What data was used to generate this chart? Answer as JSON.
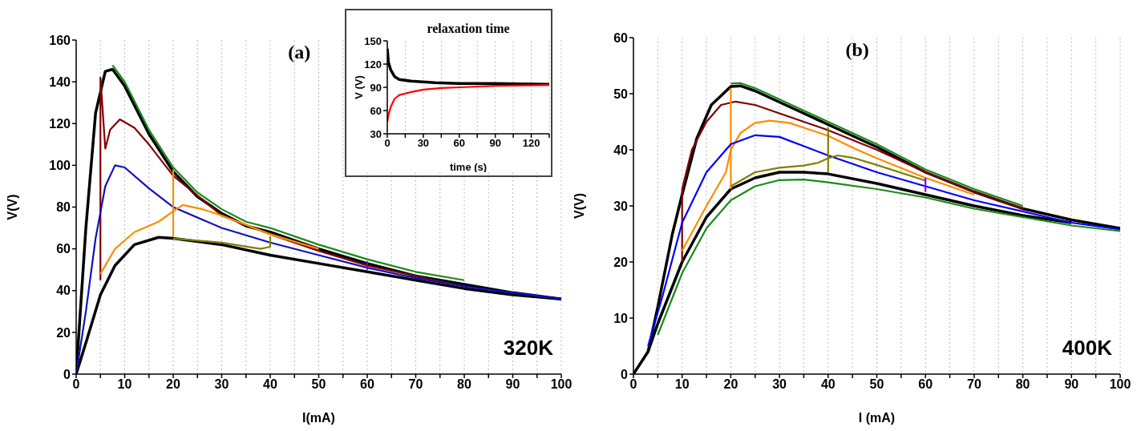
{
  "chart_data": [
    {
      "type": "line",
      "xlabel": "I(mA)",
      "ylabel": "V(V)",
      "annotations": [
        "(a)",
        "320K"
      ],
      "xlim": [
        0,
        100
      ],
      "ylim": [
        0,
        160
      ],
      "xticks": [
        0,
        {
          "value": 5,
          "label": null
        },
        10,
        {
          "value": 15,
          "label": null
        },
        20,
        {
          "value": 25,
          "label": null
        },
        30,
        {
          "value": 35,
          "label": null
        },
        40,
        {
          "value": 45,
          "label": null
        },
        50,
        {
          "value": 55,
          "label": null
        },
        60,
        {
          "value": 65,
          "label": null
        },
        70,
        {
          "value": 75,
          "label": null
        },
        80,
        {
          "value": 85,
          "label": null
        },
        90,
        {
          "value": 95,
          "label": null
        },
        100
      ],
      "yticks": [
        0,
        20,
        40,
        60,
        80,
        100,
        120,
        140,
        160
      ],
      "grid": "x",
      "series": [
        {
          "color": "#000000",
          "x": [
            0,
            2,
            4,
            6,
            7.5,
            10,
            15,
            20,
            25,
            30,
            35,
            40,
            50,
            60,
            70,
            80,
            90,
            100
          ],
          "values": [
            0,
            70,
            125,
            145,
            146,
            138,
            115,
            97,
            85,
            77,
            71,
            68,
            60,
            53,
            47,
            43,
            39,
            36
          ]
        },
        {
          "color": "#000000",
          "x": [
            0,
            2,
            5,
            8,
            12,
            17,
            20,
            30,
            40,
            50,
            60,
            70,
            80,
            90,
            100
          ],
          "values": [
            0,
            15,
            38,
            52,
            62,
            65.5,
            65,
            62,
            57,
            53,
            49,
            45,
            41,
            38,
            36
          ]
        },
        {
          "color": "#1a8a1a",
          "x": [
            7.5,
            10,
            15,
            20,
            25,
            30,
            35,
            40,
            50,
            60,
            70,
            80
          ],
          "values": [
            148,
            140,
            117,
            99,
            87,
            79,
            73,
            70,
            62,
            55,
            49,
            45
          ]
        },
        {
          "color": "#800000",
          "x": [
            5,
            5,
            6,
            7,
            9,
            12,
            15,
            20,
            30,
            40,
            50,
            60,
            70,
            80
          ],
          "values": [
            45,
            142,
            108,
            117,
            122,
            118,
            110,
            95,
            76,
            67,
            59,
            52,
            47,
            42
          ]
        },
        {
          "color": "#1010c0",
          "x": [
            0,
            2,
            4,
            6,
            8,
            10,
            15,
            20,
            30,
            40,
            50,
            60,
            70,
            80,
            90,
            100
          ],
          "values": [
            0,
            30,
            65,
            90,
            100,
            99,
            89,
            80,
            70,
            63,
            57,
            51,
            46,
            42,
            39,
            36
          ]
        },
        {
          "color": "#ff8c00",
          "x": [
            5,
            8,
            12,
            17,
            20,
            22,
            26,
            30,
            40,
            50
          ],
          "values": [
            48,
            60,
            68,
            73,
            78,
            81,
            79,
            76,
            67,
            60
          ]
        },
        {
          "color": "#ff8c00",
          "x": [
            20,
            20
          ],
          "values": [
            66,
            98
          ]
        },
        {
          "color": "#808000",
          "x": [
            20,
            30,
            38,
            40,
            40
          ],
          "values": [
            65,
            63,
            60,
            61,
            66
          ]
        },
        {
          "color": "#8000a0",
          "x": [
            60,
            60
          ],
          "values": [
            50,
            54
          ]
        }
      ]
    },
    {
      "type": "line",
      "title": "relaxation time",
      "xlabel": "time (s)",
      "ylabel": "V (V)",
      "xlim": [
        0,
        135
      ],
      "ylim": [
        30,
        150
      ],
      "xticks": [
        0,
        {
          "value": 15,
          "label": null
        },
        30,
        {
          "value": 45,
          "label": null
        },
        60,
        {
          "value": 75,
          "label": null
        },
        90,
        {
          "value": 105,
          "label": null
        },
        120,
        {
          "value": 135,
          "label": null
        }
      ],
      "yticks": [
        30,
        60,
        90,
        120,
        150
      ],
      "grid": "x",
      "series": [
        {
          "color": "#000000",
          "x": [
            0,
            1,
            3,
            6,
            10,
            20,
            40,
            60,
            90,
            135
          ],
          "values": [
            140,
            122,
            112,
            104,
            100,
            98,
            96,
            95,
            95,
            94
          ]
        },
        {
          "color": "#ff0000",
          "x": [
            0,
            1,
            3,
            6,
            10,
            20,
            30,
            45,
            60,
            90,
            135
          ],
          "values": [
            45,
            55,
            65,
            75,
            80,
            84,
            87,
            89,
            90,
            92,
            93
          ]
        }
      ]
    },
    {
      "type": "line",
      "xlabel": "I (mA)",
      "ylabel": "V(V)",
      "annotations": [
        "(b)",
        "400K"
      ],
      "xlim": [
        0,
        100
      ],
      "ylim": [
        0,
        60
      ],
      "xticks": [
        0,
        {
          "value": 5,
          "label": null
        },
        10,
        {
          "value": 15,
          "label": null
        },
        20,
        {
          "value": 25,
          "label": null
        },
        30,
        {
          "value": 35,
          "label": null
        },
        40,
        {
          "value": 45,
          "label": null
        },
        50,
        {
          "value": 55,
          "label": null
        },
        60,
        {
          "value": 65,
          "label": null
        },
        70,
        {
          "value": 75,
          "label": null
        },
        80,
        {
          "value": 85,
          "label": null
        },
        90,
        {
          "value": 95,
          "label": null
        },
        100
      ],
      "yticks": [
        0,
        10,
        20,
        30,
        40,
        50,
        60
      ],
      "grid": "x",
      "series": [
        {
          "color": "#000000",
          "x": [
            0,
            3,
            5,
            8,
            10,
            13,
            16,
            20,
            22,
            25,
            30,
            40,
            50,
            60,
            70,
            80,
            90,
            100
          ],
          "values": [
            0,
            4,
            12,
            25,
            32,
            42,
            48,
            51.3,
            51.4,
            50.5,
            48.5,
            44.5,
            40.5,
            36,
            32.5,
            29.5,
            27.5,
            26
          ]
        },
        {
          "color": "#000000",
          "x": [
            3,
            5,
            10,
            15,
            20,
            25,
            30,
            35,
            40,
            50,
            60,
            70,
            80,
            90
          ],
          "values": [
            4,
            9,
            20,
            28,
            33,
            35,
            36,
            36,
            35.7,
            34,
            32,
            30,
            28.3,
            27
          ]
        },
        {
          "color": "#1a8a1a",
          "x": [
            20,
            22,
            25,
            30,
            40,
            50,
            60,
            70,
            80
          ],
          "values": [
            51.8,
            51.9,
            51,
            49,
            45,
            41,
            36.5,
            33,
            30
          ]
        },
        {
          "color": "#1a8a1a",
          "x": [
            5,
            10,
            15,
            20,
            25,
            30,
            35,
            40,
            50,
            60,
            70,
            80,
            90,
            100
          ],
          "values": [
            7,
            18,
            26,
            31,
            33.5,
            34.6,
            34.7,
            34.2,
            33,
            31.5,
            29.5,
            28,
            26.5,
            25.5
          ]
        },
        {
          "color": "#800000",
          "x": [
            10,
            10,
            12,
            15,
            18,
            21,
            25,
            30,
            40,
            50,
            60,
            70,
            80
          ],
          "values": [
            20,
            33,
            40,
            45,
            48,
            48.6,
            48,
            46.5,
            43.5,
            40,
            36,
            32.5,
            29.5
          ]
        },
        {
          "color": "#ff8c00",
          "x": [
            10,
            15,
            19,
            20,
            22,
            25,
            28,
            32,
            40,
            46,
            50,
            60,
            70
          ],
          "values": [
            22,
            30,
            36,
            40,
            43,
            44.8,
            45.2,
            44.8,
            42.5,
            40,
            38.5,
            35,
            32
          ]
        },
        {
          "color": "#ff8c00",
          "x": [
            20,
            20
          ],
          "values": [
            33,
            51
          ]
        },
        {
          "color": "#0000ff",
          "x": [
            3,
            6,
            10,
            15,
            20,
            25,
            30,
            40,
            50,
            60,
            70,
            80,
            90,
            100
          ],
          "values": [
            5,
            14,
            27,
            36,
            41,
            42.6,
            42.3,
            39,
            36,
            33.5,
            31,
            29,
            27,
            25.8
          ]
        },
        {
          "color": "#808000",
          "x": [
            20,
            25,
            30,
            35,
            38,
            40,
            42,
            45,
            50,
            60
          ],
          "values": [
            33.5,
            36,
            36.8,
            37.2,
            37.7,
            38.5,
            39,
            38.6,
            37.3,
            34.5
          ]
        },
        {
          "color": "#808000",
          "x": [
            40,
            40
          ],
          "values": [
            36,
            44
          ]
        },
        {
          "color": "#8000ff",
          "x": [
            60,
            60
          ],
          "values": [
            32.5,
            35
          ]
        }
      ]
    }
  ]
}
